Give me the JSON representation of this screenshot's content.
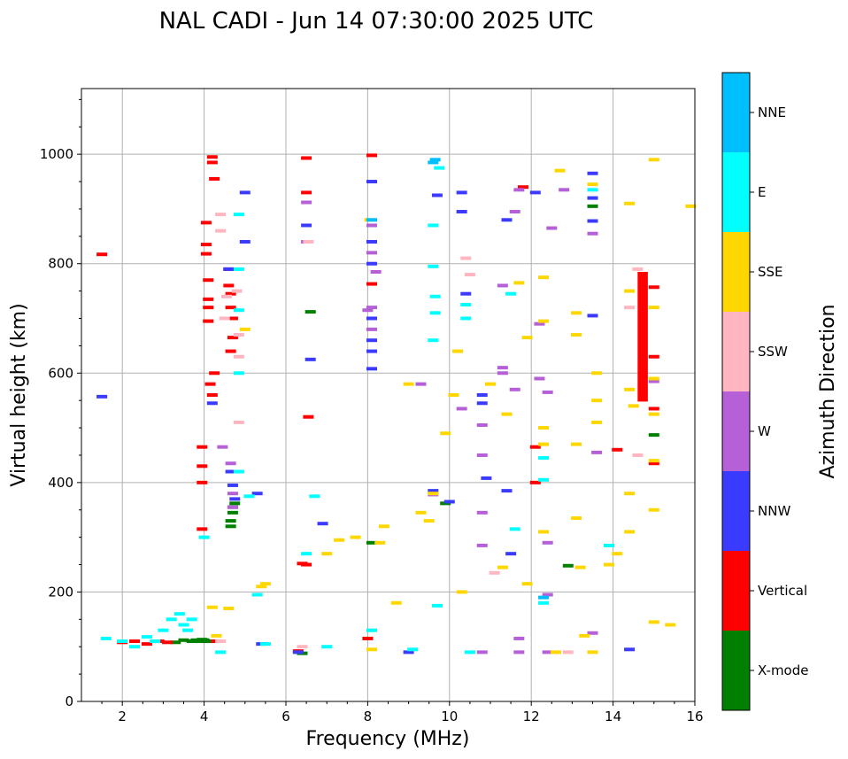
{
  "chart_data": {
    "type": "scatter",
    "title": "NAL CADI - Jun 14 07:30:00 2025 UTC",
    "xlabel": "Frequency (MHz)",
    "ylabel": "Virtual height (km)",
    "xlim": [
      1,
      16
    ],
    "ylim": [
      0,
      1120
    ],
    "xticks": [
      2,
      4,
      6,
      8,
      10,
      12,
      14,
      16
    ],
    "xtick_labels": [
      "2",
      "4",
      "6",
      "8",
      "10",
      "12",
      "14",
      "16"
    ],
    "yticks": [
      0,
      200,
      400,
      600,
      800,
      1000
    ],
    "ytick_labels": [
      "0",
      "200",
      "400",
      "600",
      "800",
      "1000"
    ],
    "grid": true,
    "colorbar": {
      "title": "Azimuth Direction",
      "categories": [
        "X-mode",
        "Vertical",
        "NNW",
        "W",
        "SSW",
        "SSE",
        "E",
        "NNE"
      ],
      "colors": [
        "#008000",
        "#ff0000",
        "#3b3bff",
        "#b660d8",
        "#ffb6c1",
        "#ffd700",
        "#00ffff",
        "#00bfff"
      ]
    },
    "series": [
      {
        "name": "X-mode",
        "points": [
          [
            3.7,
            110
          ],
          [
            3.8,
            112
          ],
          [
            3.9,
            110
          ],
          [
            4.0,
            112
          ],
          [
            4.1,
            110
          ],
          [
            3.5,
            112
          ],
          [
            3.3,
            108
          ],
          [
            4.65,
            320
          ],
          [
            4.65,
            330
          ],
          [
            4.7,
            345
          ],
          [
            4.7,
            355
          ],
          [
            4.75,
            362
          ],
          [
            6.6,
            712
          ],
          [
            15.0,
            487
          ],
          [
            13.5,
            905
          ],
          [
            8.1,
            290
          ],
          [
            9.9,
            362
          ],
          [
            12.9,
            248
          ],
          [
            6.4,
            88
          ],
          [
            4.2,
            110
          ],
          [
            3.95,
            113
          ]
        ]
      },
      {
        "name": "Vertical",
        "points": [
          [
            1.5,
            817
          ],
          [
            3.95,
            465
          ],
          [
            3.95,
            430
          ],
          [
            3.95,
            400
          ],
          [
            3.95,
            315
          ],
          [
            4.05,
            875
          ],
          [
            4.05,
            835
          ],
          [
            4.05,
            818
          ],
          [
            4.1,
            770
          ],
          [
            4.1,
            735
          ],
          [
            4.1,
            720
          ],
          [
            4.1,
            695
          ],
          [
            4.15,
            580
          ],
          [
            4.2,
            995
          ],
          [
            4.25,
            955
          ],
          [
            4.2,
            985
          ],
          [
            4.25,
            600
          ],
          [
            4.2,
            560
          ],
          [
            4.6,
            790
          ],
          [
            4.6,
            760
          ],
          [
            4.65,
            720
          ],
          [
            4.7,
            700
          ],
          [
            4.7,
            665
          ],
          [
            4.65,
            640
          ],
          [
            2.0,
            108
          ],
          [
            2.3,
            110
          ],
          [
            2.6,
            105
          ],
          [
            2.9,
            110
          ],
          [
            3.1,
            108
          ],
          [
            4.65,
            745
          ],
          [
            15.0,
            757
          ],
          [
            15.0,
            630
          ],
          [
            15.0,
            535
          ],
          [
            15.0,
            435
          ],
          [
            6.4,
            252
          ],
          [
            6.5,
            250
          ],
          [
            6.55,
            520
          ],
          [
            6.5,
            930
          ],
          [
            6.5,
            993
          ],
          [
            8.1,
            998
          ],
          [
            8.1,
            763
          ],
          [
            12.1,
            465
          ],
          [
            12.1,
            400
          ],
          [
            11.8,
            940
          ],
          [
            14.1,
            460
          ],
          [
            6.3,
            92
          ],
          [
            8.0,
            115
          ],
          [
            4.3,
            110
          ]
        ]
      },
      {
        "name": "NNW",
        "points": [
          [
            1.5,
            557
          ],
          [
            4.2,
            545
          ],
          [
            4.6,
            790
          ],
          [
            4.65,
            420
          ],
          [
            4.7,
            395
          ],
          [
            4.75,
            370
          ],
          [
            5.0,
            930
          ],
          [
            5.0,
            840
          ],
          [
            5.3,
            380
          ],
          [
            5.4,
            105
          ],
          [
            6.5,
            870
          ],
          [
            6.6,
            625
          ],
          [
            6.9,
            325
          ],
          [
            8.1,
            950
          ],
          [
            8.1,
            840
          ],
          [
            8.1,
            800
          ],
          [
            8.1,
            700
          ],
          [
            8.1,
            660
          ],
          [
            8.1,
            640
          ],
          [
            8.1,
            608
          ],
          [
            9.6,
            385
          ],
          [
            9.7,
            925
          ],
          [
            10.0,
            365
          ],
          [
            10.3,
            930
          ],
          [
            10.3,
            895
          ],
          [
            10.4,
            745
          ],
          [
            10.8,
            560
          ],
          [
            10.8,
            545
          ],
          [
            10.9,
            408
          ],
          [
            11.4,
            880
          ],
          [
            11.4,
            385
          ],
          [
            11.5,
            270
          ],
          [
            12.1,
            930
          ],
          [
            13.5,
            965
          ],
          [
            13.5,
            920
          ],
          [
            13.5,
            878
          ],
          [
            13.5,
            705
          ],
          [
            14.4,
            95
          ],
          [
            9.0,
            90
          ],
          [
            6.3,
            90
          ]
        ]
      },
      {
        "name": "W",
        "points": [
          [
            4.45,
            465
          ],
          [
            4.65,
            435
          ],
          [
            4.7,
            380
          ],
          [
            4.7,
            355
          ],
          [
            6.5,
            840
          ],
          [
            6.5,
            912
          ],
          [
            8.0,
            715
          ],
          [
            8.1,
            870
          ],
          [
            8.1,
            820
          ],
          [
            8.1,
            720
          ],
          [
            8.1,
            680
          ],
          [
            8.2,
            785
          ],
          [
            9.3,
            580
          ],
          [
            9.6,
            378
          ],
          [
            10.3,
            535
          ],
          [
            10.8,
            505
          ],
          [
            10.8,
            450
          ],
          [
            10.8,
            345
          ],
          [
            10.8,
            285
          ],
          [
            11.3,
            760
          ],
          [
            11.3,
            610
          ],
          [
            11.3,
            600
          ],
          [
            11.6,
            895
          ],
          [
            11.6,
            570
          ],
          [
            11.7,
            935
          ],
          [
            12.2,
            690
          ],
          [
            12.2,
            590
          ],
          [
            12.4,
            565
          ],
          [
            12.4,
            290
          ],
          [
            12.4,
            195
          ],
          [
            12.5,
            865
          ],
          [
            12.8,
            935
          ],
          [
            13.5,
            855
          ],
          [
            13.5,
            125
          ],
          [
            13.6,
            455
          ],
          [
            11.7,
            115
          ],
          [
            11.7,
            90
          ],
          [
            12.4,
            90
          ],
          [
            10.8,
            90
          ],
          [
            15.0,
            585
          ]
        ]
      },
      {
        "name": "SSW",
        "points": [
          [
            4.4,
            890
          ],
          [
            4.4,
            860
          ],
          [
            4.5,
            700
          ],
          [
            4.55,
            740
          ],
          [
            4.8,
            750
          ],
          [
            4.85,
            670
          ],
          [
            4.85,
            630
          ],
          [
            4.85,
            510
          ],
          [
            4.4,
            110
          ],
          [
            6.4,
            100
          ],
          [
            6.55,
            840
          ],
          [
            10.4,
            810
          ],
          [
            10.5,
            780
          ],
          [
            11.1,
            235
          ],
          [
            14.4,
            720
          ],
          [
            14.6,
            790
          ],
          [
            14.6,
            450
          ],
          [
            12.9,
            90
          ]
        ]
      },
      {
        "name": "SSE",
        "points": [
          [
            4.2,
            172
          ],
          [
            4.3,
            120
          ],
          [
            4.6,
            170
          ],
          [
            5.0,
            680
          ],
          [
            5.4,
            210
          ],
          [
            5.5,
            215
          ],
          [
            7.0,
            270
          ],
          [
            7.3,
            295
          ],
          [
            7.7,
            300
          ],
          [
            8.05,
            880
          ],
          [
            8.1,
            130
          ],
          [
            8.1,
            95
          ],
          [
            8.3,
            290
          ],
          [
            8.4,
            320
          ],
          [
            8.7,
            180
          ],
          [
            9.0,
            580
          ],
          [
            9.3,
            345
          ],
          [
            9.5,
            330
          ],
          [
            9.6,
            380
          ],
          [
            9.9,
            490
          ],
          [
            10.1,
            560
          ],
          [
            10.2,
            640
          ],
          [
            10.3,
            200
          ],
          [
            11.0,
            580
          ],
          [
            11.3,
            245
          ],
          [
            11.4,
            525
          ],
          [
            11.7,
            765
          ],
          [
            11.9,
            665
          ],
          [
            11.9,
            215
          ],
          [
            12.3,
            775
          ],
          [
            12.3,
            695
          ],
          [
            12.3,
            500
          ],
          [
            12.3,
            470
          ],
          [
            12.3,
            310
          ],
          [
            12.7,
            970
          ],
          [
            13.1,
            710
          ],
          [
            13.1,
            670
          ],
          [
            13.1,
            470
          ],
          [
            13.1,
            335
          ],
          [
            13.2,
            245
          ],
          [
            13.3,
            120
          ],
          [
            13.5,
            945
          ],
          [
            13.6,
            600
          ],
          [
            13.6,
            550
          ],
          [
            13.6,
            510
          ],
          [
            13.9,
            250
          ],
          [
            14.1,
            270
          ],
          [
            14.4,
            910
          ],
          [
            14.4,
            750
          ],
          [
            14.4,
            380
          ],
          [
            14.4,
            310
          ],
          [
            14.4,
            570
          ],
          [
            14.5,
            540
          ],
          [
            15.0,
            990
          ],
          [
            15.0,
            720
          ],
          [
            15.0,
            590
          ],
          [
            15.0,
            525
          ],
          [
            15.0,
            440
          ],
          [
            15.0,
            350
          ],
          [
            15.0,
            145
          ],
          [
            15.4,
            140
          ],
          [
            15.9,
            905
          ],
          [
            13.5,
            90
          ],
          [
            12.6,
            90
          ]
        ]
      },
      {
        "name": "E",
        "points": [
          [
            1.6,
            115
          ],
          [
            2.0,
            110
          ],
          [
            2.3,
            100
          ],
          [
            2.6,
            118
          ],
          [
            2.8,
            110
          ],
          [
            3.0,
            130
          ],
          [
            3.2,
            150
          ],
          [
            3.4,
            160
          ],
          [
            3.5,
            140
          ],
          [
            3.6,
            130
          ],
          [
            3.7,
            150
          ],
          [
            4.0,
            300
          ],
          [
            4.4,
            90
          ],
          [
            4.85,
            890
          ],
          [
            4.85,
            790
          ],
          [
            4.85,
            715
          ],
          [
            4.85,
            600
          ],
          [
            4.85,
            420
          ],
          [
            5.1,
            375
          ],
          [
            5.3,
            195
          ],
          [
            5.5,
            105
          ],
          [
            6.5,
            270
          ],
          [
            6.7,
            375
          ],
          [
            7.0,
            100
          ],
          [
            8.1,
            130
          ],
          [
            9.1,
            95
          ],
          [
            9.6,
            870
          ],
          [
            9.6,
            795
          ],
          [
            9.65,
            740
          ],
          [
            9.65,
            710
          ],
          [
            9.6,
            660
          ],
          [
            9.7,
            175
          ],
          [
            9.75,
            975
          ],
          [
            10.4,
            725
          ],
          [
            10.4,
            700
          ],
          [
            11.5,
            745
          ],
          [
            11.6,
            315
          ],
          [
            12.3,
            445
          ],
          [
            12.3,
            405
          ],
          [
            12.3,
            180
          ],
          [
            13.5,
            935
          ],
          [
            13.9,
            285
          ],
          [
            10.5,
            90
          ]
        ]
      },
      {
        "name": "NNE",
        "points": [
          [
            9.65,
            990
          ],
          [
            9.6,
            985
          ],
          [
            8.1,
            880
          ],
          [
            12.3,
            190
          ]
        ]
      }
    ]
  }
}
